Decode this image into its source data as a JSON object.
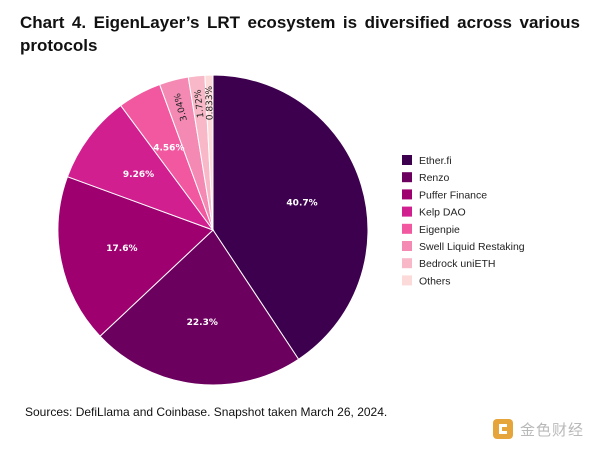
{
  "chart_data": {
    "type": "pie",
    "title": "Chart 4. EigenLayer’s LRT ecosystem is diversified across various protocols",
    "slices": [
      {
        "label": "Ether.fi",
        "value": 40.7,
        "display": "40.7%",
        "color": "#3d004f"
      },
      {
        "label": "Renzo",
        "value": 22.3,
        "display": "22.3%",
        "color": "#6b005e"
      },
      {
        "label": "Puffer Finance",
        "value": 17.6,
        "display": "17.6%",
        "color": "#9e006f"
      },
      {
        "label": "Kelp DAO",
        "value": 9.26,
        "display": "9.26%",
        "color": "#d21f8f"
      },
      {
        "label": "Eigenpie",
        "value": 4.56,
        "display": "4.56%",
        "color": "#f2589f"
      },
      {
        "label": "Swell Liquid Restaking",
        "value": 3.04,
        "display": "3.04%",
        "color": "#f48ab4"
      },
      {
        "label": "Bedrock uniETH",
        "value": 1.72,
        "display": "1.72%",
        "color": "#f8b8c8"
      },
      {
        "label": "Others",
        "value": 0.833,
        "display": "0.833%",
        "color": "#fcdada"
      }
    ],
    "legend_position": "right"
  },
  "source_note": "Sources: DefiLlama and Coinbase. Snapshot taken March 26, 2024.",
  "watermark": {
    "text": "金色财经",
    "icon": "gold-cube-logo-icon",
    "color": "#e6a53a"
  }
}
